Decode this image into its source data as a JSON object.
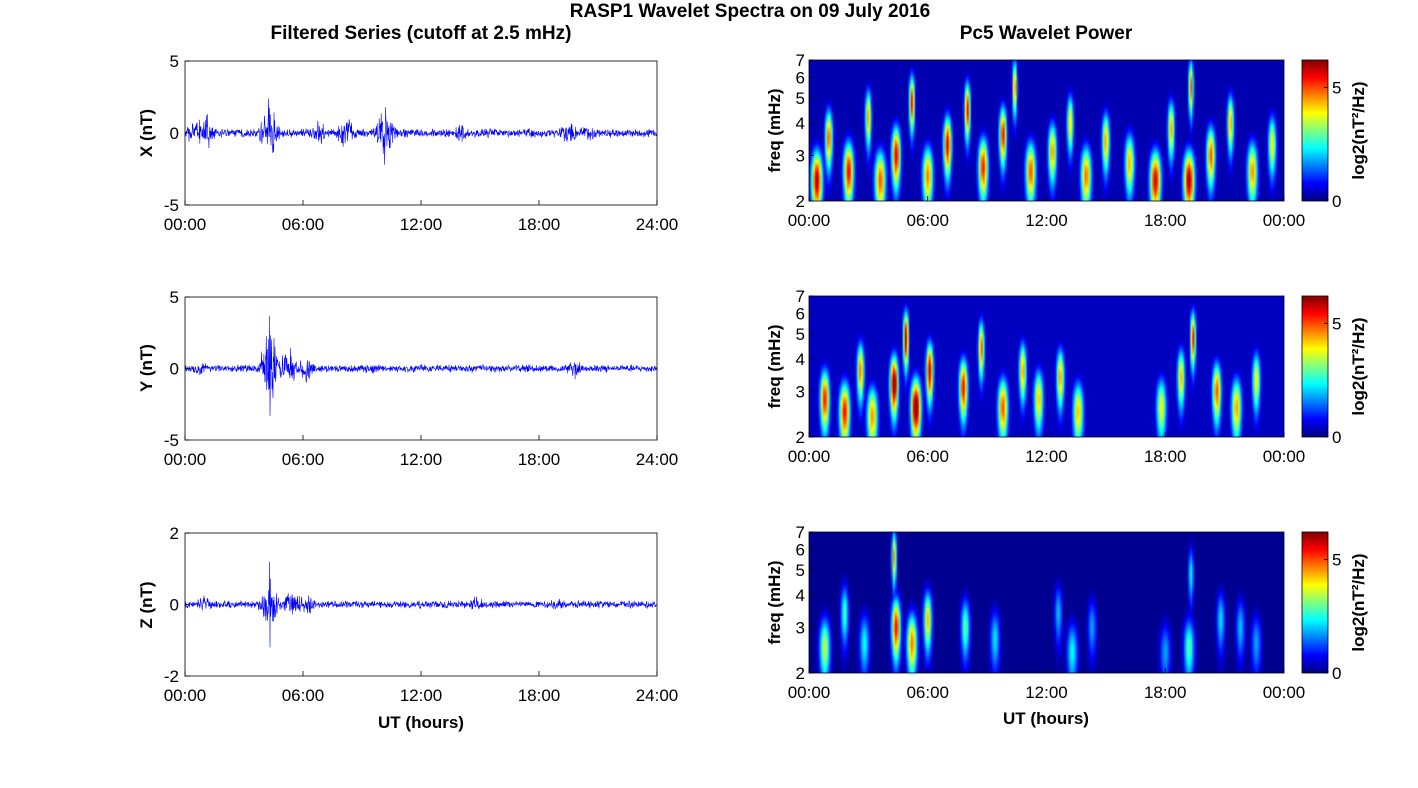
{
  "figure": {
    "title": "RASP1 Wavelet Spectra on 09 July 2016",
    "left_title": "Filtered Series (cutoff at 2.5 mHz)",
    "right_title": "Pc5 Wavelet Power",
    "xlabel": "UT (hours)",
    "freq_label": "freq (mHz)",
    "colorbar_label": "log2(nT²/Hz)"
  },
  "chart_data": [
    {
      "type": "line",
      "panel": "X component",
      "ylabel": "X (nT)",
      "ylim": [
        -5,
        5
      ],
      "yticks": [
        "5",
        "0",
        "-5"
      ],
      "xlim": [
        0,
        24
      ],
      "xticks": [
        "00:00",
        "06:00",
        "12:00",
        "18:00",
        "24:00"
      ],
      "x_unit": "hours UT",
      "series": [
        {
          "color": "#0000ff",
          "baseline_amplitude": 0.35,
          "envelope": [
            {
              "x": 0.5,
              "amp": 1.0
            },
            {
              "x": 1.0,
              "amp": 1.6
            },
            {
              "x": 4.3,
              "amp": 2.4
            },
            {
              "x": 6.8,
              "amp": 1.0
            },
            {
              "x": 8.2,
              "amp": 1.4
            },
            {
              "x": 10.2,
              "amp": 2.2
            },
            {
              "x": 14.0,
              "amp": 0.8
            },
            {
              "x": 19.5,
              "amp": 1.0
            },
            {
              "x": 20.5,
              "amp": 0.8
            }
          ],
          "peaks": [
            {
              "x": 4.25,
              "y": 2.4
            },
            {
              "x": 10.15,
              "y": -2.2
            },
            {
              "x": 10.2,
              "y": 1.8
            }
          ]
        }
      ]
    },
    {
      "type": "line",
      "panel": "Y component",
      "ylabel": "Y (nT)",
      "ylim": [
        -5,
        5
      ],
      "yticks": [
        "5",
        "0",
        "-5"
      ],
      "xlim": [
        0,
        24
      ],
      "xticks": [
        "00:00",
        "06:00",
        "12:00",
        "18:00",
        "24:00"
      ],
      "x_unit": "hours UT",
      "series": [
        {
          "color": "#0000ff",
          "baseline_amplitude": 0.3,
          "envelope": [
            {
              "x": 0.8,
              "amp": 0.7
            },
            {
              "x": 4.3,
              "amp": 3.0
            },
            {
              "x": 5.2,
              "amp": 1.8
            },
            {
              "x": 6.2,
              "amp": 1.2
            },
            {
              "x": 9.5,
              "amp": 0.5
            },
            {
              "x": 19.8,
              "amp": 0.8
            }
          ],
          "peaks": [
            {
              "x": 4.3,
              "y": 3.7
            },
            {
              "x": 4.32,
              "y": -3.3
            }
          ]
        }
      ]
    },
    {
      "type": "line",
      "panel": "Z component",
      "ylabel": "Z (nT)",
      "ylim": [
        -2,
        2
      ],
      "yticks": [
        "2",
        "0",
        "-2"
      ],
      "xlim": [
        0,
        24
      ],
      "xticks": [
        "00:00",
        "06:00",
        "12:00",
        "18:00",
        "24:00"
      ],
      "x_unit": "hours UT",
      "series": [
        {
          "color": "#0000ff",
          "baseline_amplitude": 0.12,
          "envelope": [
            {
              "x": 1.0,
              "amp": 0.3
            },
            {
              "x": 4.3,
              "amp": 0.8
            },
            {
              "x": 5.5,
              "amp": 0.5
            },
            {
              "x": 6.2,
              "amp": 0.4
            },
            {
              "x": 14.8,
              "amp": 0.3
            },
            {
              "x": 19.0,
              "amp": 0.25
            }
          ],
          "peaks": [
            {
              "x": 4.3,
              "y": 1.2
            },
            {
              "x": 4.32,
              "y": -1.2
            }
          ]
        }
      ]
    },
    {
      "type": "heatmap",
      "panel": "X wavelet power",
      "ylabel": "freq (mHz)",
      "ylim": [
        2,
        7
      ],
      "yscale": "log",
      "yticks": [
        "2",
        "3",
        "4",
        "5",
        "6",
        "7"
      ],
      "xlim": [
        0,
        24
      ],
      "xticks": [
        "00:00",
        "06:00",
        "12:00",
        "18:00",
        "00:00"
      ],
      "colorbar": {
        "label": "log2(nT²/Hz)",
        "range": [
          0,
          6.2
        ],
        "ticks": [
          "0",
          "5"
        ],
        "colormap": "jet"
      },
      "background": 0.3,
      "blobs": [
        {
          "t": 0.4,
          "f": 2.4,
          "v": 6.0
        },
        {
          "t": 1.0,
          "f": 3.5,
          "v": 5.0
        },
        {
          "t": 2.0,
          "f": 2.6,
          "v": 5.6
        },
        {
          "t": 3.0,
          "f": 4.2,
          "v": 4.6
        },
        {
          "t": 3.6,
          "f": 2.4,
          "v": 5.0
        },
        {
          "t": 4.4,
          "f": 3.0,
          "v": 5.8
        },
        {
          "t": 5.2,
          "f": 4.8,
          "v": 5.5
        },
        {
          "t": 6.0,
          "f": 2.5,
          "v": 4.8
        },
        {
          "t": 7.0,
          "f": 3.3,
          "v": 5.8
        },
        {
          "t": 8.0,
          "f": 4.5,
          "v": 5.6
        },
        {
          "t": 8.8,
          "f": 2.7,
          "v": 5.4
        },
        {
          "t": 9.8,
          "f": 3.6,
          "v": 5.5
        },
        {
          "t": 10.4,
          "f": 5.5,
          "v": 4.8
        },
        {
          "t": 11.2,
          "f": 2.6,
          "v": 5.0
        },
        {
          "t": 12.3,
          "f": 3.1,
          "v": 4.6
        },
        {
          "t": 13.2,
          "f": 4.0,
          "v": 4.2
        },
        {
          "t": 14.0,
          "f": 2.5,
          "v": 4.8
        },
        {
          "t": 15.0,
          "f": 3.4,
          "v": 4.5
        },
        {
          "t": 16.2,
          "f": 2.8,
          "v": 4.4
        },
        {
          "t": 17.5,
          "f": 2.4,
          "v": 5.8
        },
        {
          "t": 18.3,
          "f": 3.8,
          "v": 4.4
        },
        {
          "t": 19.2,
          "f": 2.4,
          "v": 6.1
        },
        {
          "t": 19.3,
          "f": 5.5,
          "v": 5.0
        },
        {
          "t": 20.3,
          "f": 3.0,
          "v": 5.0
        },
        {
          "t": 21.3,
          "f": 4.0,
          "v": 4.5
        },
        {
          "t": 22.4,
          "f": 2.6,
          "v": 4.6
        },
        {
          "t": 23.4,
          "f": 3.3,
          "v": 4.0
        }
      ]
    },
    {
      "type": "heatmap",
      "panel": "Y wavelet power",
      "ylabel": "freq (mHz)",
      "ylim": [
        2,
        7
      ],
      "yscale": "log",
      "yticks": [
        "2",
        "3",
        "4",
        "5",
        "6",
        "7"
      ],
      "xlim": [
        0,
        24
      ],
      "xticks": [
        "00:00",
        "06:00",
        "12:00",
        "18:00",
        "00:00"
      ],
      "colorbar": {
        "label": "log2(nT²/Hz)",
        "range": [
          0,
          6.2
        ],
        "ticks": [
          "0",
          "5"
        ],
        "colormap": "jet"
      },
      "background": 0.4,
      "blobs": [
        {
          "t": 0.8,
          "f": 2.8,
          "v": 5.4
        },
        {
          "t": 1.8,
          "f": 2.5,
          "v": 5.5
        },
        {
          "t": 2.6,
          "f": 3.6,
          "v": 4.8
        },
        {
          "t": 3.2,
          "f": 2.4,
          "v": 4.6
        },
        {
          "t": 4.3,
          "f": 3.2,
          "v": 6.6
        },
        {
          "t": 4.9,
          "f": 4.8,
          "v": 6.3
        },
        {
          "t": 5.4,
          "f": 2.6,
          "v": 6.6
        },
        {
          "t": 6.1,
          "f": 3.6,
          "v": 6.0
        },
        {
          "t": 7.8,
          "f": 3.1,
          "v": 5.6
        },
        {
          "t": 8.7,
          "f": 4.4,
          "v": 5.0
        },
        {
          "t": 9.8,
          "f": 2.6,
          "v": 5.0
        },
        {
          "t": 10.8,
          "f": 3.6,
          "v": 4.6
        },
        {
          "t": 11.6,
          "f": 2.8,
          "v": 4.3
        },
        {
          "t": 12.7,
          "f": 3.4,
          "v": 4.6
        },
        {
          "t": 13.6,
          "f": 2.5,
          "v": 4.3
        },
        {
          "t": 17.8,
          "f": 2.6,
          "v": 3.9
        },
        {
          "t": 18.8,
          "f": 3.4,
          "v": 4.3
        },
        {
          "t": 19.4,
          "f": 4.8,
          "v": 5.4
        },
        {
          "t": 20.6,
          "f": 3.0,
          "v": 5.0
        },
        {
          "t": 21.6,
          "f": 2.6,
          "v": 4.5
        },
        {
          "t": 22.6,
          "f": 3.3,
          "v": 4.0
        }
      ]
    },
    {
      "type": "heatmap",
      "panel": "Z wavelet power",
      "ylabel": "freq (mHz)",
      "ylim": [
        2,
        7
      ],
      "yscale": "log",
      "yticks": [
        "2",
        "3",
        "4",
        "5",
        "6",
        "7"
      ],
      "xlim": [
        0,
        24
      ],
      "xticks": [
        "00:00",
        "06:00",
        "12:00",
        "18:00",
        "00:00"
      ],
      "colorbar": {
        "label": "log2(nT²/Hz)",
        "range": [
          0,
          6.2
        ],
        "ticks": [
          "0",
          "5"
        ],
        "colormap": "jet"
      },
      "background": 0.1,
      "blobs": [
        {
          "t": 0.8,
          "f": 2.5,
          "v": 3.6
        },
        {
          "t": 1.8,
          "f": 3.4,
          "v": 2.8
        },
        {
          "t": 2.8,
          "f": 2.6,
          "v": 2.4
        },
        {
          "t": 4.4,
          "f": 3.0,
          "v": 5.6
        },
        {
          "t": 4.3,
          "f": 5.6,
          "v": 4.6
        },
        {
          "t": 5.2,
          "f": 2.6,
          "v": 4.8
        },
        {
          "t": 6.0,
          "f": 3.2,
          "v": 4.3
        },
        {
          "t": 7.9,
          "f": 3.0,
          "v": 3.0
        },
        {
          "t": 9.4,
          "f": 2.7,
          "v": 2.2
        },
        {
          "t": 12.6,
          "f": 3.4,
          "v": 2.0
        },
        {
          "t": 13.3,
          "f": 2.4,
          "v": 2.4
        },
        {
          "t": 14.3,
          "f": 3.0,
          "v": 1.8
        },
        {
          "t": 18.0,
          "f": 2.4,
          "v": 1.8
        },
        {
          "t": 19.2,
          "f": 2.5,
          "v": 2.9
        },
        {
          "t": 19.3,
          "f": 4.8,
          "v": 2.4
        },
        {
          "t": 20.8,
          "f": 3.2,
          "v": 2.2
        },
        {
          "t": 21.8,
          "f": 3.0,
          "v": 2.0
        },
        {
          "t": 22.6,
          "f": 2.6,
          "v": 1.8
        }
      ]
    }
  ]
}
